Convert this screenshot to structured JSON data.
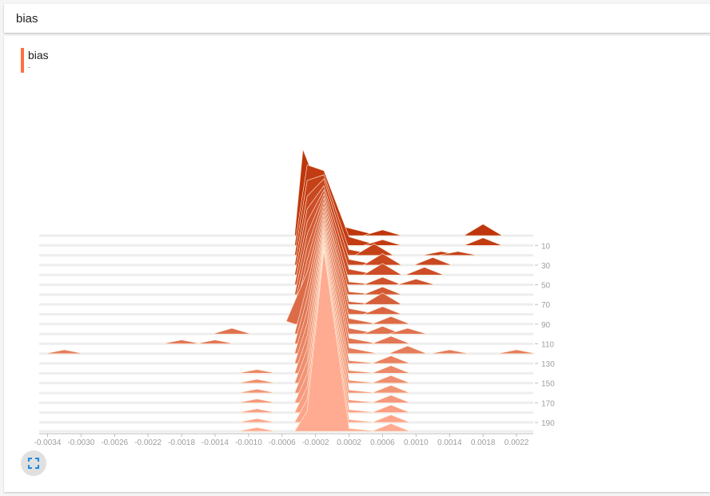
{
  "header": {
    "title": "bias"
  },
  "card": {
    "run_title": "bias",
    "run_subtitle": "."
  },
  "colors": {
    "accent": "#ff7043",
    "dark": "#bf360c",
    "light": "#ffab91",
    "grid": "#e0e0e0"
  },
  "icons": {
    "expand": "fullscreen-icon"
  },
  "chart_data": {
    "type": "area",
    "subtype": "histogram-offset",
    "xlim": [
      -0.0035,
      0.0024
    ],
    "x_ticks": [
      -0.0034,
      -0.003,
      -0.0026,
      -0.0022,
      -0.0018,
      -0.0014,
      -0.001,
      -0.0006,
      -0.0002,
      0.0002,
      0.0006,
      0.001,
      0.0014,
      0.0018,
      0.0022
    ],
    "x_tick_labels": [
      "-0.0034",
      "-0.0030",
      "-0.0026",
      "-0.0022",
      "-0.0018",
      "-0.0014",
      "-0.0010",
      "-0.0006",
      "-0.0002",
      "0.0002",
      "0.0006",
      "0.0010",
      "0.0014",
      "0.0018",
      "0.0022"
    ],
    "step_range": [
      0,
      199
    ],
    "y_ticks": [
      10,
      30,
      50,
      70,
      90,
      110,
      130,
      150,
      170,
      190
    ],
    "y_tick_labels": [
      "10",
      "30",
      "50",
      "70",
      "90",
      "110",
      "130",
      "150",
      "170",
      "190"
    ],
    "series": [
      {
        "step": 0,
        "bins": [
          [
            -0.00045,
            0.0
          ],
          [
            -0.00035,
            0.3
          ],
          [
            -0.00015,
            0.15
          ],
          [
            0.00015,
            0.03
          ],
          [
            0.0006,
            0.015
          ],
          [
            0.0018,
            0.03
          ]
        ]
      },
      {
        "step": 10,
        "bins": [
          [
            -0.00045,
            0.0
          ],
          [
            -0.0003,
            0.28
          ],
          [
            -0.0001,
            0.26
          ],
          [
            0.0002,
            0.03
          ],
          [
            0.0006,
            0.015
          ],
          [
            0.0018,
            0.02
          ]
        ]
      },
      {
        "step": 20,
        "bins": [
          [
            -0.00045,
            0.0
          ],
          [
            -0.0003,
            0.26
          ],
          [
            -0.0001,
            0.28
          ],
          [
            0.0002,
            0.02
          ],
          [
            0.0005,
            0.03
          ],
          [
            0.0013,
            0.01
          ],
          [
            0.0015,
            0.01
          ]
        ]
      },
      {
        "step": 30,
        "bins": [
          [
            -0.00045,
            0.0
          ],
          [
            -0.0003,
            0.24
          ],
          [
            -0.0001,
            0.3
          ],
          [
            0.0002,
            0.02
          ],
          [
            0.0006,
            0.03
          ],
          [
            0.0012,
            0.02
          ]
        ]
      },
      {
        "step": 40,
        "bins": [
          [
            -0.00045,
            0.0
          ],
          [
            -0.0003,
            0.23
          ],
          [
            -0.0001,
            0.31
          ],
          [
            0.0002,
            0.02
          ],
          [
            0.0006,
            0.03
          ],
          [
            0.0011,
            0.02
          ]
        ]
      },
      {
        "step": 50,
        "bins": [
          [
            -0.00045,
            0.0
          ],
          [
            -0.0003,
            0.22
          ],
          [
            -0.0001,
            0.33
          ],
          [
            0.0002,
            0.01
          ],
          [
            0.0006,
            0.02
          ],
          [
            0.001,
            0.015
          ]
        ]
      },
      {
        "step": 60,
        "bins": [
          [
            -0.00045,
            0.0
          ],
          [
            -0.0003,
            0.21
          ],
          [
            -0.0001,
            0.35
          ],
          [
            0.0002,
            0.01
          ],
          [
            0.0006,
            0.02
          ]
        ]
      },
      {
        "step": 70,
        "bins": [
          [
            -0.00045,
            0.0
          ],
          [
            -0.0003,
            0.2
          ],
          [
            -0.0001,
            0.37
          ],
          [
            0.0002,
            0.01
          ],
          [
            0.0006,
            0.03
          ]
        ]
      },
      {
        "step": 80,
        "bins": [
          [
            -0.00045,
            0.0
          ],
          [
            -0.0003,
            0.19
          ],
          [
            -0.0001,
            0.39
          ],
          [
            0.0002,
            0.02
          ],
          [
            0.0006,
            0.02
          ]
        ]
      },
      {
        "step": 90,
        "bins": [
          [
            -0.00055,
            0.01
          ],
          [
            -0.0003,
            0.18
          ],
          [
            -0.0001,
            0.41
          ],
          [
            0.0002,
            0.02
          ],
          [
            0.0007,
            0.02
          ]
        ]
      },
      {
        "step": 100,
        "bins": [
          [
            -0.00045,
            0.0
          ],
          [
            -0.0003,
            0.17
          ],
          [
            -0.0001,
            0.43
          ],
          [
            0.0002,
            0.02
          ],
          [
            0.0006,
            0.02
          ],
          [
            0.0009,
            0.015
          ],
          [
            -0.0012,
            0.015
          ]
        ]
      },
      {
        "step": 110,
        "bins": [
          [
            -0.00045,
            0.0
          ],
          [
            -0.0003,
            0.16
          ],
          [
            -0.0001,
            0.45
          ],
          [
            0.0002,
            0.02
          ],
          [
            0.0007,
            0.02
          ],
          [
            -0.0014,
            0.01
          ],
          [
            -0.0018,
            0.01
          ]
        ]
      },
      {
        "step": 120,
        "bins": [
          [
            -0.00045,
            0.0
          ],
          [
            -0.0003,
            0.15
          ],
          [
            -0.0001,
            0.47
          ],
          [
            0.0002,
            0.02
          ],
          [
            0.0009,
            0.02
          ],
          [
            0.0014,
            0.01
          ],
          [
            -0.0032,
            0.01
          ],
          [
            0.0022,
            0.01
          ]
        ]
      },
      {
        "step": 130,
        "bins": [
          [
            -0.00045,
            0.0
          ],
          [
            -0.0003,
            0.14
          ],
          [
            -0.0001,
            0.49
          ],
          [
            0.0002,
            0.01
          ],
          [
            0.0007,
            0.02
          ]
        ]
      },
      {
        "step": 140,
        "bins": [
          [
            -0.00045,
            0.0
          ],
          [
            -0.0003,
            0.13
          ],
          [
            -0.0001,
            0.51
          ],
          [
            0.0002,
            0.01
          ],
          [
            0.0007,
            0.02
          ],
          [
            -0.0009,
            0.01
          ]
        ]
      },
      {
        "step": 150,
        "bins": [
          [
            -0.00045,
            0.0
          ],
          [
            -0.0003,
            0.12
          ],
          [
            -0.0001,
            0.53
          ],
          [
            0.0002,
            0.01
          ],
          [
            0.0007,
            0.02
          ],
          [
            -0.0009,
            0.01
          ]
        ]
      },
      {
        "step": 160,
        "bins": [
          [
            -0.00045,
            0.0
          ],
          [
            -0.0003,
            0.11
          ],
          [
            -0.0001,
            0.55
          ],
          [
            0.0002,
            0.01
          ],
          [
            0.0007,
            0.02
          ],
          [
            -0.0009,
            0.01
          ]
        ]
      },
      {
        "step": 170,
        "bins": [
          [
            -0.00045,
            0.0
          ],
          [
            -0.0003,
            0.1
          ],
          [
            -0.0001,
            0.57
          ],
          [
            0.0002,
            0.01
          ],
          [
            0.0007,
            0.02
          ],
          [
            -0.0009,
            0.01
          ]
        ]
      },
      {
        "step": 180,
        "bins": [
          [
            -0.00045,
            0.0
          ],
          [
            -0.0003,
            0.09
          ],
          [
            -0.0001,
            0.59
          ],
          [
            0.0002,
            0.01
          ],
          [
            0.0007,
            0.02
          ],
          [
            -0.0009,
            0.01
          ]
        ]
      },
      {
        "step": 190,
        "bins": [
          [
            -0.00045,
            0.0
          ],
          [
            -0.0003,
            0.08
          ],
          [
            -0.0001,
            0.61
          ],
          [
            0.0002,
            0.01
          ],
          [
            0.0007,
            0.02
          ],
          [
            -0.0009,
            0.01
          ]
        ]
      },
      {
        "step": 199,
        "bins": [
          [
            -0.00045,
            0.0
          ],
          [
            -0.0003,
            0.07
          ],
          [
            -0.0001,
            0.63
          ],
          [
            0.0002,
            0.01
          ],
          [
            0.0007,
            0.02
          ],
          [
            -0.0009,
            0.01
          ]
        ]
      }
    ]
  }
}
